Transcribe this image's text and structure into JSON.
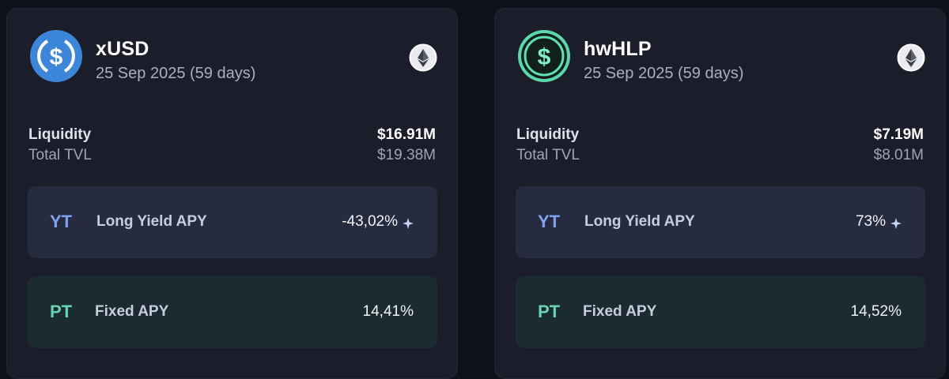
{
  "cards": [
    {
      "token": "xUSD",
      "date": "25 Sep 2025 (59 days)",
      "icon": "usdc-dollar-icon",
      "chain_icon": "ethereum-icon",
      "liquidity_label": "Liquidity",
      "liquidity_value": "$16.91M",
      "tvl_label": "Total TVL",
      "tvl_value": "$19.38M",
      "yt": {
        "badge": "YT",
        "label": "Long Yield APY",
        "value": "-43,02%"
      },
      "pt": {
        "badge": "PT",
        "label": "Fixed APY",
        "value": "14,41%"
      }
    },
    {
      "token": "hwHLP",
      "date": "25 Sep 2025 (59 days)",
      "icon": "green-dollar-icon",
      "chain_icon": "ethereum-icon",
      "liquidity_label": "Liquidity",
      "liquidity_value": "$7.19M",
      "tvl_label": "Total TVL",
      "tvl_value": "$8.01M",
      "yt": {
        "badge": "YT",
        "label": "Long Yield APY",
        "value": "73%"
      },
      "pt": {
        "badge": "PT",
        "label": "Fixed APY",
        "value": "14,52%"
      }
    }
  ],
  "colors": {
    "background": "#0f1119",
    "card": "#1b1e2a",
    "yt_row": "#262b40",
    "pt_row": "#1b2b31",
    "yt_accent": "#7ea2ee",
    "pt_accent": "#66d4b3",
    "usdc_blue": "#3b86d8",
    "hlp_green": "#62e0b5"
  }
}
